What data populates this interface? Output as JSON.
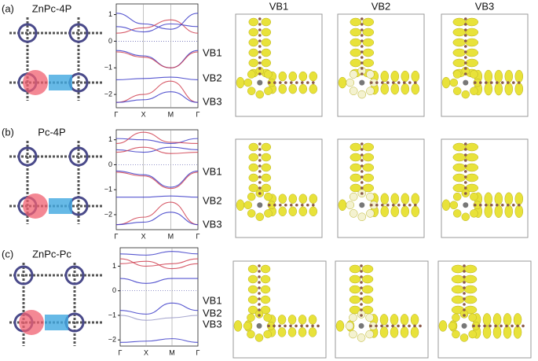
{
  "column_headers": [
    "VB1",
    "VB2",
    "VB3"
  ],
  "panels": [
    {
      "label": "(a)",
      "title": "ZnPc-4P",
      "band_plot": {
        "ylim": [
          -2.5,
          1.4
        ],
        "yticks": [
          1,
          0,
          {
            "value": -1,
            "label": "−1"
          },
          {
            "value": -2,
            "label": "−2"
          }
        ],
        "k_points": [
          "Γ",
          "X",
          "M",
          "Γ"
        ],
        "bands": [
          {
            "color": "#3a3ac8",
            "values": [
              1.05,
              0.65,
              0.45,
              1.05
            ]
          },
          {
            "color": "#d04050",
            "values": [
              0.3,
              0.5,
              0.8,
              0.3
            ]
          },
          {
            "color": "#3a3ac8",
            "values": [
              0.55,
              0.35,
              0.65,
              0.55
            ]
          },
          {
            "color": "#3a3ac8",
            "values": [
              -0.35,
              -0.55,
              -1.0,
              -0.35
            ]
          },
          {
            "color": "#d04050",
            "values": [
              -0.4,
              -0.6,
              -1.0,
              -0.4
            ]
          },
          {
            "color": "#3a3ac8",
            "values": [
              -1.45,
              -1.4,
              -1.35,
              -1.45
            ]
          },
          {
            "color": "#d04050",
            "values": [
              -2.3,
              -2.0,
              -1.5,
              -2.3
            ]
          },
          {
            "color": "#3a3ac8",
            "values": [
              -2.3,
              -2.2,
              -1.9,
              -2.3
            ]
          }
        ]
      },
      "band_labels": [
        "VB1",
        "VB2",
        "VB3"
      ]
    },
    {
      "label": "(b)",
      "title": "Pc-4P",
      "band_plot": {
        "ylim": [
          -2.6,
          1.4
        ],
        "yticks": [
          1,
          0,
          {
            "value": -1,
            "label": "−1"
          },
          {
            "value": -2,
            "label": "−2"
          }
        ],
        "k_points": [
          "Γ",
          "X",
          "M",
          "Γ"
        ],
        "bands": [
          {
            "color": "#3a3ac8",
            "values": [
              1.05,
              1.0,
              0.85,
              1.05
            ]
          },
          {
            "color": "#d04050",
            "values": [
              0.85,
              1.3,
              0.9,
              0.85
            ]
          },
          {
            "color": "#3a3ac8",
            "values": [
              0.6,
              0.5,
              0.7,
              0.6
            ]
          },
          {
            "color": "#d04050",
            "values": [
              0.5,
              0.7,
              0.45,
              0.5
            ]
          },
          {
            "color": "#3a3ac8",
            "values": [
              -0.25,
              -0.4,
              -0.9,
              -0.25
            ]
          },
          {
            "color": "#d04050",
            "values": [
              -0.3,
              -0.45,
              -0.95,
              -0.3
            ]
          },
          {
            "color": "#3a3ac8",
            "values": [
              -1.3,
              -1.3,
              -1.25,
              -1.3
            ]
          },
          {
            "color": "#d04050",
            "values": [
              -2.4,
              -2.1,
              -1.5,
              -2.4
            ]
          },
          {
            "color": "#3a3ac8",
            "values": [
              -2.4,
              -2.3,
              -1.9,
              -2.4
            ]
          }
        ]
      },
      "band_labels": [
        "VB1",
        "VB2",
        "VB3"
      ]
    },
    {
      "label": "(c)",
      "title": "ZnPc-Pc",
      "band_plot": {
        "ylim": [
          -2.25,
          1.75
        ],
        "yticks": [
          1,
          0,
          {
            "value": -1,
            "label": "−1"
          },
          {
            "value": -2,
            "label": "−2"
          }
        ],
        "k_points": [
          "Γ",
          "X",
          "M",
          "Γ"
        ],
        "bands": [
          {
            "color": "#3a3ac8",
            "values": [
              1.5,
              1.45,
              1.6,
              1.5
            ]
          },
          {
            "color": "#d04050",
            "values": [
              1.3,
              1.0,
              1.1,
              1.3
            ]
          },
          {
            "color": "#d04050",
            "values": [
              1.1,
              1.2,
              0.9,
              1.1
            ]
          },
          {
            "color": "#3a3ac8",
            "values": [
              0.5,
              0.3,
              0.5,
              0.5
            ]
          },
          {
            "color": "#3a3ac8",
            "values": [
              -0.8,
              -0.95,
              -0.5,
              -0.8
            ]
          },
          {
            "color": "#9a9ac8",
            "values": [
              -1.0,
              -1.2,
              -1.1,
              -1.0
            ]
          },
          {
            "color": "#3a3ac8",
            "values": [
              -2.1,
              -2.05,
              -1.95,
              -2.1
            ]
          }
        ]
      },
      "band_labels": [
        "VB1",
        "VB2",
        "VB3"
      ]
    }
  ]
}
